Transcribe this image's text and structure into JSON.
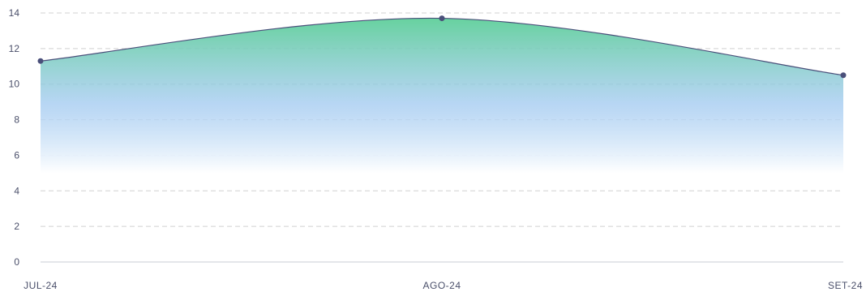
{
  "chart_data": {
    "type": "area",
    "title": "",
    "xlabel": "",
    "ylabel": "",
    "categories": [
      "JUL-24",
      "AGO-24",
      "SET-24"
    ],
    "series": [
      {
        "values": [
          11.3,
          13.7,
          10.5
        ]
      }
    ],
    "ylim": [
      0,
      14
    ],
    "yticks": [
      0,
      2,
      4,
      6,
      8,
      10,
      12,
      14
    ],
    "grid": true,
    "legend": "none",
    "colors": {
      "line": "#4a4f7a",
      "marker": "#4a4f7a",
      "gradient_top": "#5fcf9a",
      "gradient_mid": "#9fc8f0",
      "gradient_bottom": "#ffffff",
      "grid": "#d0d0d0",
      "axis": "#c8ccd4",
      "tick_text": "#4a4f6a"
    }
  }
}
